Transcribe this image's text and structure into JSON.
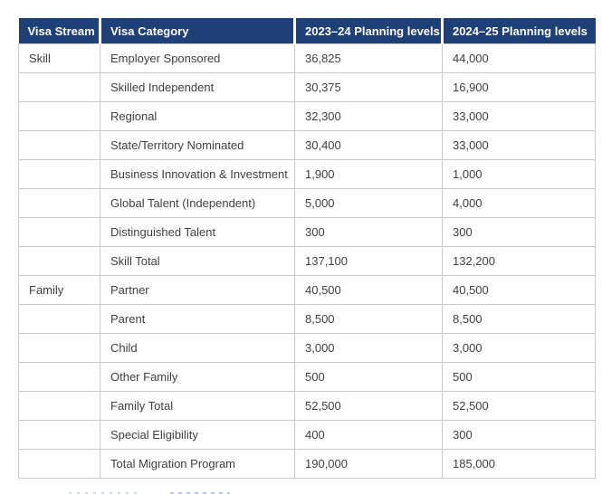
{
  "colors": {
    "header_bg": "#1F4076",
    "header_text": "#FFFFFF",
    "body_text": "#404040",
    "border": "#CBCBCB"
  },
  "table": {
    "columns": [
      {
        "key": "visa-stream",
        "label": "Visa Stream"
      },
      {
        "key": "visa-category",
        "label": "Visa Category"
      },
      {
        "key": "planning-2023-24",
        "label": "2023–24 Planning levels"
      },
      {
        "key": "planning-2024-25",
        "label": "2024–25 Planning levels"
      }
    ],
    "rows": [
      [
        "Skill",
        "Employer Sponsored",
        "36,825",
        "44,000"
      ],
      [
        "",
        "Skilled Independent",
        "30,375",
        "16,900"
      ],
      [
        "",
        "Regional",
        "32,300",
        "33,000"
      ],
      [
        "",
        "State/Territory Nominated",
        "30,400",
        "33,000"
      ],
      [
        "",
        "Business Innovation & Investment",
        "1,900",
        "1,000"
      ],
      [
        "",
        "Global Talent (Independent)",
        "5,000",
        "4,000"
      ],
      [
        "",
        "Distinguished Talent",
        "300",
        "300"
      ],
      [
        "",
        "Skill Total",
        "137,100",
        "132,200"
      ],
      [
        "Family",
        "Partner",
        "40,500",
        "40,500"
      ],
      [
        "",
        "Parent",
        "8,500",
        "8,500"
      ],
      [
        "",
        "Child",
        "3,000",
        "3,000"
      ],
      [
        "",
        "Other Family",
        "500",
        "500"
      ],
      [
        "",
        "Family Total",
        "52,500",
        "52,500"
      ],
      [
        "",
        "Special Eligibility",
        "400",
        "300"
      ],
      [
        "",
        "Total Migration Program",
        "190,000",
        "185,000"
      ]
    ]
  }
}
